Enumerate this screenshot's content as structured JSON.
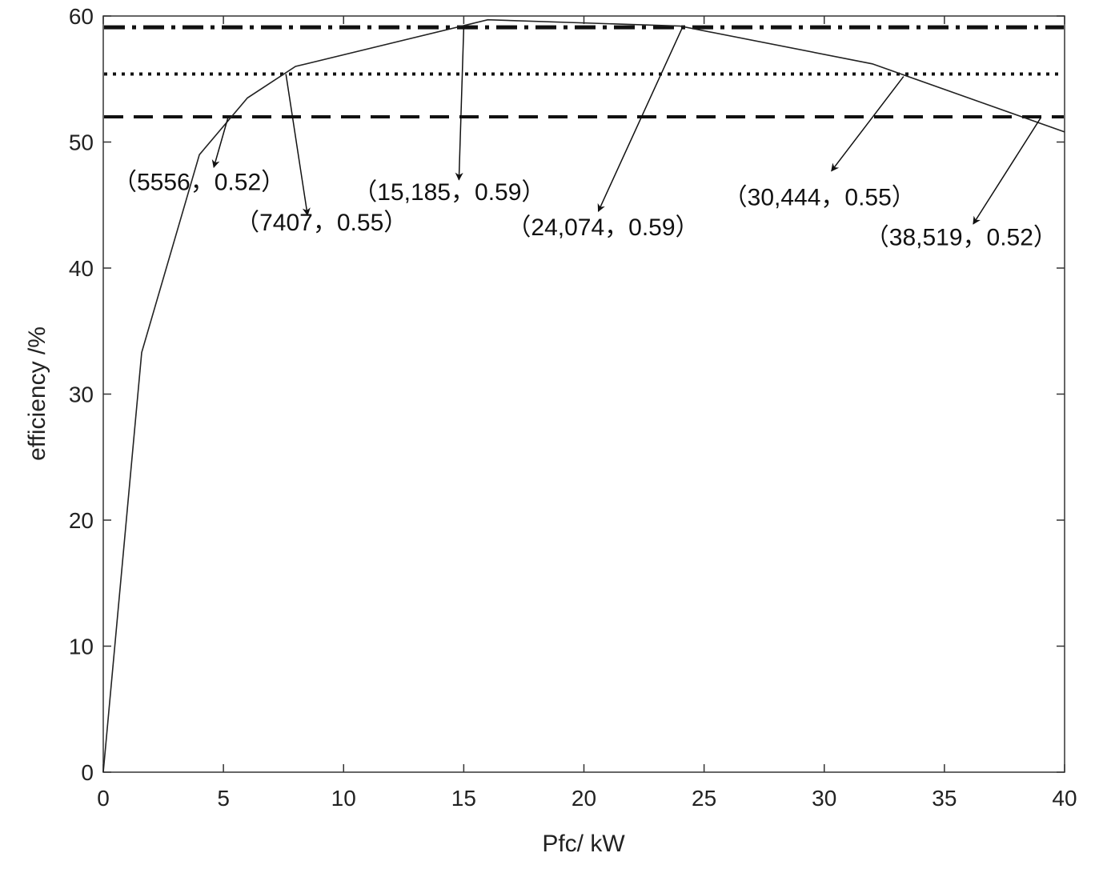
{
  "chart_data": {
    "type": "line",
    "xlabel": "Pfc/ kW",
    "ylabel": "efficiency /%",
    "xlim": [
      0,
      40
    ],
    "ylim": [
      0,
      60
    ],
    "xticks": [
      0,
      5,
      10,
      15,
      20,
      25,
      30,
      35,
      40
    ],
    "yticks": [
      0,
      10,
      20,
      30,
      40,
      50,
      60
    ],
    "grid": false,
    "series": [
      {
        "style": "solid",
        "x": [
          0,
          1.6,
          4,
          6,
          8,
          16,
          24,
          32,
          40
        ],
        "y": [
          0,
          33.3,
          49,
          53.5,
          56,
          59.7,
          59.2,
          56.2,
          50.8
        ]
      }
    ],
    "reference_lines": [
      {
        "style": "dash-dot",
        "y": 59.1
      },
      {
        "style": "dotted",
        "y": 55.4
      },
      {
        "style": "dashed",
        "y": 52.0
      }
    ],
    "annotations": [
      {
        "text": "（5556，0.52）",
        "point": [
          5.2,
          52.0
        ],
        "arrow_to": [
          4.6,
          48.0
        ],
        "label_at": [
          0.4,
          46.2
        ]
      },
      {
        "text": "（7407，0.55）",
        "point": [
          7.6,
          55.4
        ],
        "arrow_to": [
          8.5,
          44.2
        ],
        "label_at": [
          5.5,
          43.0
        ]
      },
      {
        "text": "（15,185，0.59）",
        "point": [
          15.0,
          59.1
        ],
        "arrow_to": [
          14.8,
          47.0
        ],
        "label_at": [
          10.4,
          45.4
        ]
      },
      {
        "text": "（24,074，0.59）",
        "point": [
          24.1,
          59.1
        ],
        "arrow_to": [
          20.6,
          44.5
        ],
        "label_at": [
          16.8,
          42.6
        ]
      },
      {
        "text": "（30,444，0.55）",
        "point": [
          33.3,
          55.2
        ],
        "arrow_to": [
          30.3,
          47.7
        ],
        "label_at": [
          25.8,
          45.0
        ]
      },
      {
        "text": "（38,519，0.52）",
        "point": [
          39.0,
          51.9
        ],
        "arrow_to": [
          36.2,
          43.5
        ],
        "label_at": [
          31.7,
          41.8
        ]
      }
    ]
  }
}
